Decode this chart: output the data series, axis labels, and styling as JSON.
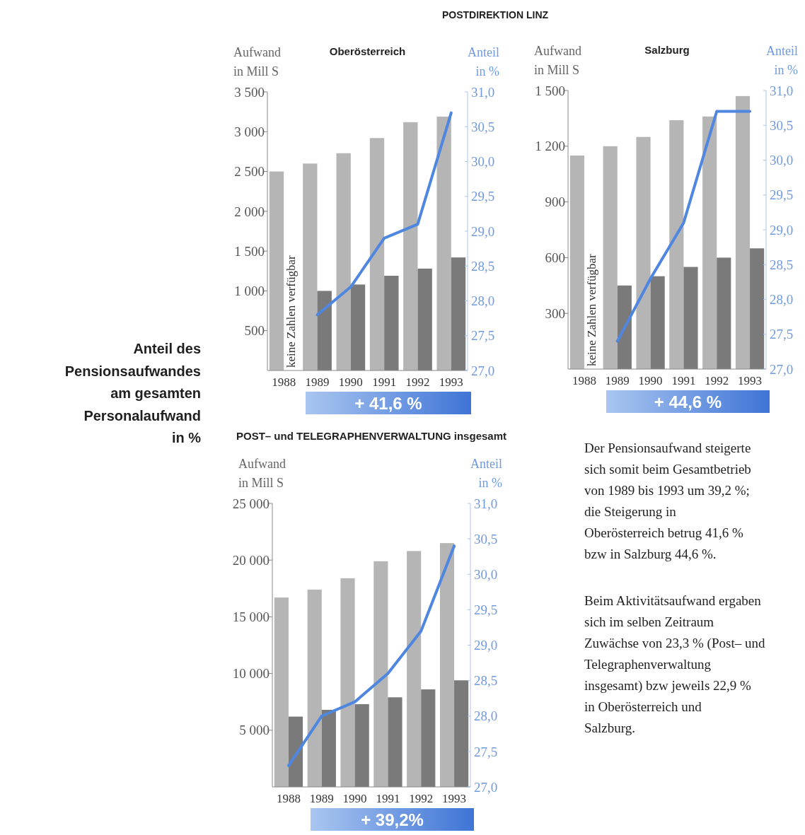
{
  "chart_data": [
    {
      "type": "bar",
      "title": "Oberösterreich",
      "ylabel": "Aufwand\nin Mill S",
      "y2label": "Anteil\nin %",
      "categories": [
        "1988",
        "1989",
        "1990",
        "1991",
        "1992",
        "1993"
      ],
      "series": [
        {
          "type": "bar",
          "color": "#b5b5b5",
          "values": [
            2500,
            2600,
            2730,
            2920,
            3120,
            3190
          ]
        },
        {
          "type": "bar",
          "color": "#7a7a7a",
          "values": [
            null,
            1000,
            1080,
            1190,
            1280,
            1420
          ]
        },
        {
          "type": "line",
          "axis": "y2",
          "color": "#4f86e0",
          "values": [
            null,
            27.8,
            28.2,
            28.9,
            29.1,
            30.7
          ]
        }
      ],
      "ylim": [
        0,
        3500
      ],
      "yticks": [
        500,
        {
          "value": 1000,
          "label": "1 000"
        },
        {
          "value": 1500,
          "label": "1 500"
        },
        {
          "value": 2000,
          "label": "2 000"
        },
        {
          "value": 2500,
          "label": "2 500"
        },
        {
          "value": 3000,
          "label": "3 000"
        },
        {
          "value": 3500,
          "label": "3 500"
        }
      ],
      "y2lim": [
        27,
        31
      ],
      "y2ticks": [
        {
          "value": 27,
          "label": "27,0"
        },
        {
          "value": 27.5,
          "label": "27,5"
        },
        {
          "value": 28,
          "label": "28,0"
        },
        {
          "value": 28.5,
          "label": "28,5"
        },
        {
          "value": 29,
          "label": "29,0"
        },
        {
          "value": 29.5,
          "label": "29,5"
        },
        {
          "value": 30,
          "label": "30,0"
        },
        {
          "value": 30.5,
          "label": "30,5"
        },
        {
          "value": 31,
          "label": "31,0"
        }
      ],
      "annotations": [
        {
          "text": "keine Zahlen verfügbar",
          "x": "1988"
        },
        "+ 41,6 %"
      ]
    },
    {
      "type": "bar",
      "title": "Salzburg",
      "ylabel": "Aufwand\nin Mill S",
      "y2label": "Anteil\nin %",
      "categories": [
        "1988",
        "1989",
        "1990",
        "1991",
        "1992",
        "1993"
      ],
      "series": [
        {
          "type": "bar",
          "color": "#b5b5b5",
          "values": [
            1150,
            1200,
            1250,
            1340,
            1360,
            1470
          ]
        },
        {
          "type": "bar",
          "color": "#7a7a7a",
          "values": [
            null,
            450,
            500,
            550,
            600,
            650
          ]
        },
        {
          "type": "line",
          "axis": "y2",
          "color": "#4f86e0",
          "values": [
            null,
            27.4,
            28.3,
            29.1,
            30.7,
            30.7
          ]
        }
      ],
      "ylim": [
        0,
        1500
      ],
      "yticks": [
        300,
        600,
        900,
        {
          "value": 1200,
          "label": "1 200"
        },
        {
          "value": 1500,
          "label": "1 500"
        }
      ],
      "y2lim": [
        27,
        31
      ],
      "y2ticks": [
        {
          "value": 27,
          "label": "27,0"
        },
        {
          "value": 27.5,
          "label": "27,5"
        },
        {
          "value": 28,
          "label": "28,0"
        },
        {
          "value": 28.5,
          "label": "28,5"
        },
        {
          "value": 29,
          "label": "29,0"
        },
        {
          "value": 29.5,
          "label": "29,5"
        },
        {
          "value": 30,
          "label": "30,0"
        },
        {
          "value": 30.5,
          "label": "30,5"
        },
        {
          "value": 31,
          "label": "31,0"
        }
      ],
      "annotations": [
        {
          "text": "keine Zahlen verfügbar",
          "x": "1988"
        },
        "+ 44,6 %"
      ]
    },
    {
      "type": "bar",
      "title": "POST– und  TELEGRAPHENVERWALTUNG insgesamt",
      "ylabel": "Aufwand\nin Mill S",
      "y2label": "Anteil\nin %",
      "categories": [
        "1988",
        "1989",
        "1990",
        "1991",
        "1992",
        "1993"
      ],
      "series": [
        {
          "type": "bar",
          "color": "#b5b5b5",
          "values": [
            16700,
            17400,
            18400,
            19900,
            20800,
            21500
          ]
        },
        {
          "type": "bar",
          "color": "#7a7a7a",
          "values": [
            6200,
            6800,
            7300,
            7900,
            8600,
            9400
          ]
        },
        {
          "type": "line",
          "axis": "y2",
          "color": "#4f86e0",
          "values": [
            27.3,
            28.0,
            28.2,
            28.6,
            29.2,
            30.4
          ]
        }
      ],
      "ylim": [
        0,
        25000
      ],
      "yticks": [
        {
          "value": 5000,
          "label": "5 000"
        },
        {
          "value": 10000,
          "label": "10 000"
        },
        {
          "value": 15000,
          "label": "15 000"
        },
        {
          "value": 20000,
          "label": "20 000"
        },
        {
          "value": 25000,
          "label": "25 000"
        }
      ],
      "y2lim": [
        27,
        31
      ],
      "y2ticks": [
        {
          "value": 27,
          "label": "27,0"
        },
        {
          "value": 27.5,
          "label": "27,5"
        },
        {
          "value": 28,
          "label": "28,0"
        },
        {
          "value": 28.5,
          "label": "28,5"
        },
        {
          "value": 29,
          "label": "29,0"
        },
        {
          "value": 29.5,
          "label": "29,5"
        },
        {
          "value": 30,
          "label": "30,0"
        },
        {
          "value": 30.5,
          "label": "30,5"
        },
        {
          "value": 31,
          "label": "31,0"
        }
      ],
      "annotations": [
        "+ 39,2%"
      ]
    },
    {
      "type": "other",
      "annotations": [
        "POSTDIREKTION LINZ",
        "Anteil des\nPensionsaufwandes\nam gesamten\nPersonalaufwand\nin %",
        "Der Pensionsaufwand steigerte sich somit beim Gesamtbetrieb von 1989 bis 1993 um 39,2 %; die Steigerung in Oberösterreich betrug 41,6 % bzw in Salzburg 44,6 %.",
        "Beim Aktivitätsaufwand ergaben sich im selben Zeitraum Zuwächse von 23,3 % (Post– und Telegraphenverwaltung insgesamt) bzw jeweils 22,9 % in Oberösterreich und Salzburg."
      ]
    }
  ]
}
